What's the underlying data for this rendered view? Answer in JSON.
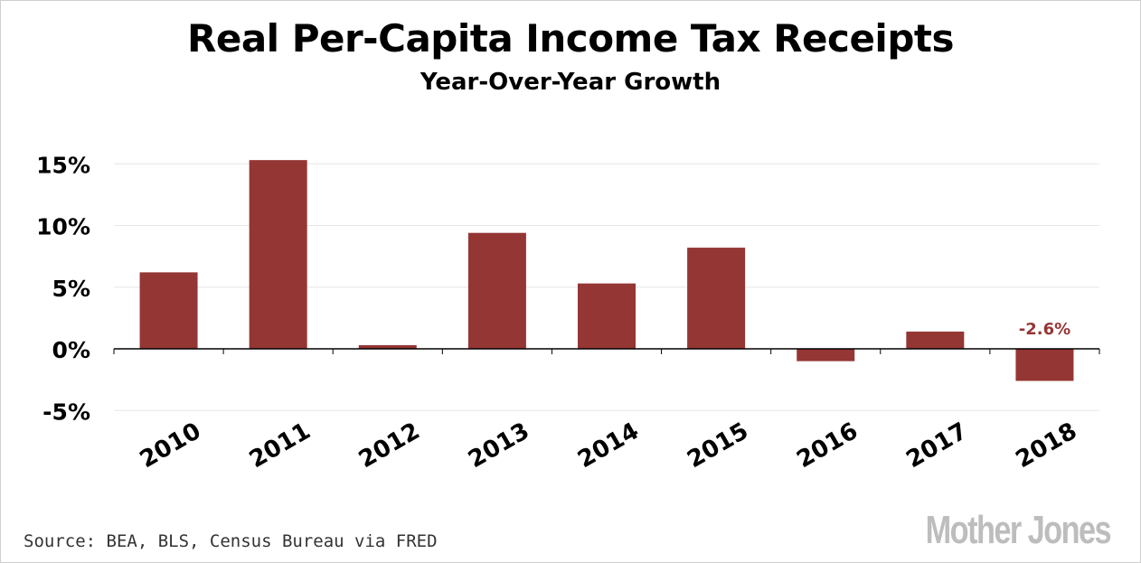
{
  "header": {
    "title": "Real Per-Capita Income Tax Receipts",
    "subtitle": "Year-Over-Year Growth"
  },
  "footer": {
    "source": "Source: BEA, BLS, Census Bureau via FRED",
    "brand": "Mother Jones"
  },
  "colors": {
    "bar": "#943634",
    "label": "#943634",
    "grid": "#e6e6e6",
    "axis": "#000000"
  },
  "chart_data": {
    "type": "bar",
    "title": "Real Per-Capita Income Tax Receipts",
    "subtitle": "Year-Over-Year Growth",
    "categories": [
      "2010",
      "2011",
      "2012",
      "2013",
      "2014",
      "2015",
      "2016",
      "2017",
      "2018"
    ],
    "values": [
      6.2,
      15.3,
      0.3,
      9.4,
      5.3,
      8.2,
      -1.0,
      1.4,
      -2.6
    ],
    "ylim": [
      -5,
      15
    ],
    "yticks": [
      15,
      10,
      5,
      0,
      -5
    ],
    "ytick_labels": [
      "15%",
      "10%",
      "5%",
      "0%",
      "-5%"
    ],
    "data_labels": [
      {
        "category": "2018",
        "text": "-2.6%"
      }
    ],
    "grid": true,
    "xlabel": "",
    "ylabel": ""
  }
}
